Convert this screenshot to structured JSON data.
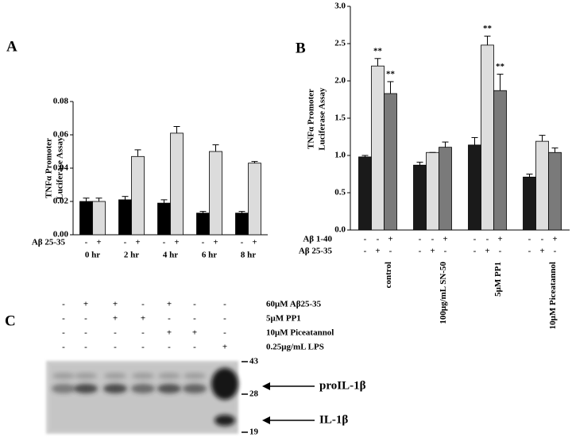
{
  "chart_data": [
    {
      "type": "bar",
      "panel": "A",
      "ylabel": [
        "TNFα Promoter",
        "Luciferase Assay"
      ],
      "categories": [
        "0 hr",
        "2 hr",
        "4 hr",
        "6 hr",
        "8 hr"
      ],
      "series": [
        {
          "color": "#000000",
          "values": [
            0.02,
            0.021,
            0.019,
            0.013,
            0.013
          ],
          "errors": [
            0.002,
            0.002,
            0.002,
            0.001,
            0.001
          ]
        },
        {
          "color": "#dcdcdc",
          "values": [
            0.02,
            0.047,
            0.061,
            0.05,
            0.043
          ],
          "errors": [
            0.002,
            0.004,
            0.004,
            0.004,
            0.001
          ]
        }
      ],
      "conditions": [
        {
          "label": "Aβ 25-35",
          "signs": [
            "-",
            "+"
          ]
        }
      ],
      "ylim": [
        0,
        0.08
      ],
      "yticks": [
        {
          "value": 0,
          "label": "0.00"
        },
        0.02,
        0.04,
        0.06,
        0.08
      ]
    },
    {
      "type": "bar",
      "panel": "B",
      "ylabel": [
        "TNFα Promoter",
        "Luciferase Assay"
      ],
      "categories": [
        "control",
        "100μg/mL SN-50",
        "5μM PP1",
        "10μM Piceatannol"
      ],
      "series": [
        {
          "color": "#1a1a1a",
          "values": [
            0.98,
            0.87,
            1.14,
            0.71
          ],
          "errors": [
            0.02,
            0.04,
            0.1,
            0.04
          ]
        },
        {
          "color": "#dedede",
          "values": [
            2.2,
            1.04,
            2.48,
            1.19
          ],
          "errors": [
            0.1,
            0.0,
            0.12,
            0.08
          ],
          "significance": [
            "**",
            null,
            "**",
            null
          ]
        },
        {
          "color": "#7a7a7a",
          "values": [
            1.83,
            1.11,
            1.87,
            1.04
          ],
          "errors": [
            0.16,
            0.07,
            0.22,
            0.06
          ],
          "significance": [
            "**",
            null,
            "**",
            null
          ]
        }
      ],
      "conditions": [
        {
          "label": "Aβ 1-40",
          "signs": [
            "-",
            "-",
            "+"
          ]
        },
        {
          "label": "Aβ 25-35",
          "signs": [
            "-",
            "+",
            "-"
          ]
        }
      ],
      "ylim": [
        0,
        3.0
      ],
      "yticks": [
        {
          "value": 0,
          "label": "0.0"
        },
        0.5,
        {
          "value": 1,
          "label": "1.0"
        },
        1.5,
        {
          "value": 2,
          "label": "2.0"
        },
        2.5,
        {
          "value": 3,
          "label": "3.0"
        }
      ]
    }
  ],
  "panel_c": {
    "label": "C",
    "conditions": [
      {
        "label": "60μM Aβ25-35",
        "signs": [
          "-",
          "+",
          "+",
          "-",
          "+",
          "-",
          "-"
        ]
      },
      {
        "label": "5μM PP1",
        "signs": [
          "-",
          "-",
          "+",
          "+",
          "-",
          "-",
          "-"
        ]
      },
      {
        "label": "10μM Piceatannol",
        "signs": [
          "-",
          "-",
          "-",
          "-",
          "+",
          "+",
          "-"
        ]
      },
      {
        "label": "0.25μg/mL LPS",
        "signs": [
          "-",
          "-",
          "-",
          "-",
          "-",
          "-",
          "+"
        ]
      }
    ],
    "markers": [
      "43",
      "28",
      "19"
    ],
    "bands": [
      "proIL-1β",
      "IL-1β"
    ]
  }
}
